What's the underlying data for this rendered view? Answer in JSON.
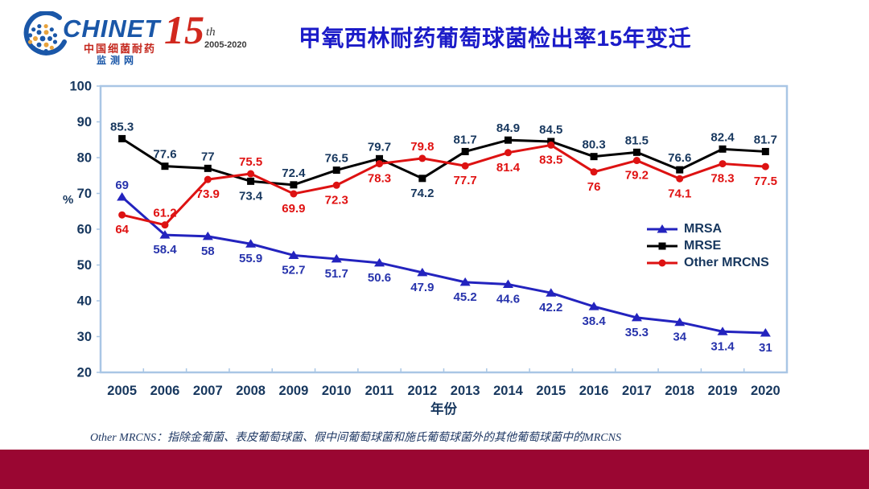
{
  "header": {
    "logo": {
      "name": "CHINET",
      "line1": "中国细菌耐药",
      "line2": "监测网"
    },
    "anniversary": {
      "number": "15",
      "suffix": "th",
      "years": "2005-2020"
    },
    "title": "甲氧西林耐药葡萄球菌检出率15年变迁"
  },
  "chart_data": {
    "type": "line",
    "title": "甲氧西林耐药葡萄球菌检出率15年变迁",
    "categories": [
      "2005",
      "2006",
      "2007",
      "2008",
      "2009",
      "2010",
      "2011",
      "2012",
      "2013",
      "2014",
      "2015",
      "2016",
      "2017",
      "2018",
      "2019",
      "2020"
    ],
    "series": [
      {
        "name": "MRSA",
        "marker": "triangle",
        "color": "#2323BE",
        "label_color": "#2733AC",
        "values": [
          69,
          58.4,
          58,
          55.9,
          52.7,
          51.7,
          50.6,
          47.9,
          45.2,
          44.6,
          42.2,
          38.4,
          35.3,
          34,
          31.4,
          31
        ],
        "label_pos": [
          "above",
          "below",
          "below",
          "below",
          "below",
          "below",
          "below",
          "below",
          "below",
          "below",
          "below",
          "below",
          "below",
          "below",
          "below",
          "below"
        ]
      },
      {
        "name": "MRSE",
        "marker": "square",
        "color": "#000000",
        "label_color": "#17375E",
        "values": [
          85.3,
          77.6,
          77,
          73.4,
          72.4,
          76.5,
          79.7,
          74.2,
          81.7,
          84.9,
          84.5,
          80.3,
          81.5,
          76.6,
          82.4,
          81.7
        ],
        "label_pos": [
          "above",
          "above",
          "above",
          "below",
          "above",
          "above",
          "above",
          "below",
          "above",
          "above",
          "above",
          "above",
          "above",
          "above",
          "above",
          "above"
        ]
      },
      {
        "name": "Other MRCNS",
        "marker": "circle",
        "color": "#DD1212",
        "label_color": "#E01212",
        "values": [
          64,
          61.2,
          73.9,
          75.5,
          69.9,
          72.3,
          78.3,
          79.8,
          77.7,
          81.4,
          83.5,
          76,
          79.2,
          74.1,
          78.3,
          77.5
        ],
        "label_pos": [
          "below",
          "above",
          "below",
          "above",
          "below",
          "below",
          "below",
          "above",
          "below",
          "below",
          "below",
          "below",
          "below",
          "below",
          "below",
          "below"
        ]
      }
    ],
    "xlabel": "年份",
    "ylabel": "%",
    "ylim": [
      20,
      100
    ],
    "ytick_step": 10,
    "yticks": [
      20,
      30,
      40,
      50,
      60,
      70,
      80,
      90,
      100
    ],
    "grid": false,
    "legend_position": "inside-right-middle",
    "axis_color": "#A9C6E5",
    "tick_label_color": "#17375E"
  },
  "footnote": "Other MRCNS：指除金葡菌、表皮葡萄球菌、假中间葡萄球菌和施氏葡萄球菌外的其他葡萄球菌中的MRCNS",
  "colors": {
    "title_blue": "#1B1BC8",
    "navy_text": "#17375E",
    "footer_maroon": "#9A0632",
    "footnote_navy": "#1F3864",
    "logo_blue": "#1A57A8",
    "logo_red": "#C4281E",
    "logo_orange": "#E8A33D",
    "anniversary_red": "#D1281E"
  }
}
